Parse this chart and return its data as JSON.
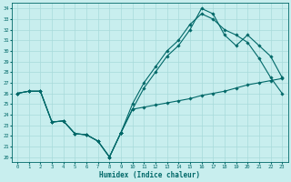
{
  "xlabel": "Humidex (Indice chaleur)",
  "bg_color": "#c8eeee",
  "grid_color": "#a8dada",
  "line_color": "#006868",
  "xlim": [
    -0.5,
    23.5
  ],
  "ylim": [
    19.5,
    34.5
  ],
  "xticks": [
    0,
    1,
    2,
    3,
    4,
    5,
    6,
    7,
    8,
    9,
    10,
    11,
    12,
    13,
    14,
    15,
    16,
    17,
    18,
    19,
    20,
    21,
    22,
    23
  ],
  "yticks": [
    20,
    21,
    22,
    23,
    24,
    25,
    26,
    27,
    28,
    29,
    30,
    31,
    32,
    33,
    34
  ],
  "shared_x": [
    0,
    1,
    2,
    3,
    4,
    5,
    6,
    7,
    8,
    9
  ],
  "shared_y": [
    26.0,
    26.2,
    26.2,
    23.3,
    23.4,
    22.2,
    22.1,
    21.5,
    20.0,
    22.3
  ],
  "line1_x": [
    9,
    10,
    11,
    12,
    13,
    14,
    15,
    16,
    17,
    18,
    19,
    20,
    21,
    22,
    23
  ],
  "line1_y": [
    22.3,
    24.5,
    24.7,
    24.9,
    25.1,
    25.3,
    25.5,
    25.8,
    26.0,
    26.2,
    26.5,
    26.8,
    27.0,
    27.2,
    27.4
  ],
  "line2_x": [
    9,
    10,
    11,
    12,
    13,
    14,
    15,
    16,
    17,
    18,
    19,
    20,
    21,
    22,
    23
  ],
  "line2_y": [
    22.3,
    25.0,
    27.0,
    28.5,
    30.0,
    31.0,
    32.5,
    33.5,
    33.0,
    32.0,
    31.5,
    30.8,
    29.3,
    27.5,
    26.0
  ],
  "line3_x": [
    9,
    10,
    11,
    12,
    13,
    14,
    15,
    16,
    17,
    18,
    19,
    20,
    21,
    22,
    23
  ],
  "line3_y": [
    22.3,
    24.5,
    26.5,
    28.0,
    29.5,
    30.5,
    32.0,
    34.0,
    33.5,
    31.5,
    30.5,
    31.5,
    30.5,
    29.5,
    27.5
  ]
}
